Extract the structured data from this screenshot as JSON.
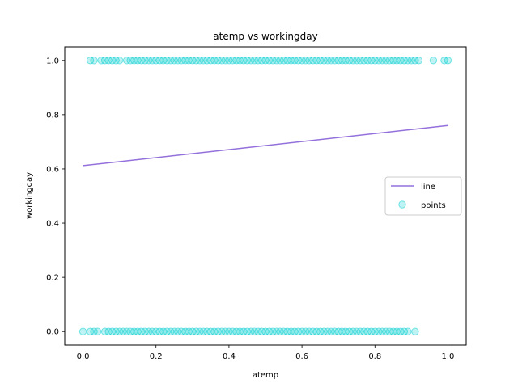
{
  "chart_data": {
    "type": "scatter",
    "title": "atemp vs workingday",
    "xlabel": "atemp",
    "ylabel": "workingday",
    "xlim": [
      -0.05,
      1.05
    ],
    "ylim": [
      -0.05,
      1.05
    ],
    "xticks": [
      0.0,
      0.2,
      0.4,
      0.6,
      0.8,
      1.0
    ],
    "yticks": [
      0.0,
      0.2,
      0.4,
      0.6,
      0.8,
      1.0
    ],
    "xtick_labels": [
      "0.0",
      "0.2",
      "0.4",
      "0.6",
      "0.8",
      "1.0"
    ],
    "ytick_labels": [
      "0.0",
      "0.2",
      "0.4",
      "0.6",
      "0.8",
      "1.0"
    ],
    "grid": false,
    "legend_position": "center-right",
    "series": [
      {
        "name": "line",
        "kind": "line",
        "color": "#9370DB",
        "x": [
          0.0,
          1.0
        ],
        "y": [
          0.612,
          0.76
        ]
      },
      {
        "name": "points",
        "kind": "scatter",
        "color": "#00CED1",
        "x_at_y1": [
          0.02,
          0.03,
          0.05,
          0.06,
          0.07,
          0.08,
          0.09,
          0.1,
          0.12,
          0.13,
          0.14,
          0.15,
          0.16,
          0.17,
          0.18,
          0.19,
          0.2,
          0.21,
          0.22,
          0.23,
          0.24,
          0.25,
          0.26,
          0.27,
          0.28,
          0.29,
          0.3,
          0.31,
          0.32,
          0.33,
          0.34,
          0.35,
          0.36,
          0.37,
          0.38,
          0.39,
          0.4,
          0.41,
          0.42,
          0.43,
          0.44,
          0.45,
          0.46,
          0.47,
          0.48,
          0.49,
          0.5,
          0.51,
          0.52,
          0.53,
          0.54,
          0.55,
          0.56,
          0.57,
          0.58,
          0.59,
          0.6,
          0.61,
          0.62,
          0.63,
          0.64,
          0.65,
          0.66,
          0.67,
          0.68,
          0.69,
          0.7,
          0.71,
          0.72,
          0.73,
          0.74,
          0.75,
          0.76,
          0.77,
          0.78,
          0.79,
          0.8,
          0.81,
          0.82,
          0.83,
          0.84,
          0.85,
          0.86,
          0.87,
          0.88,
          0.89,
          0.9,
          0.91,
          0.92,
          0.96,
          0.99,
          1.0
        ],
        "x_at_y0": [
          0.0,
          0.02,
          0.03,
          0.04,
          0.06,
          0.07,
          0.08,
          0.09,
          0.1,
          0.11,
          0.12,
          0.13,
          0.14,
          0.15,
          0.16,
          0.17,
          0.18,
          0.19,
          0.2,
          0.21,
          0.22,
          0.23,
          0.24,
          0.25,
          0.26,
          0.27,
          0.28,
          0.29,
          0.3,
          0.31,
          0.32,
          0.33,
          0.34,
          0.35,
          0.36,
          0.37,
          0.38,
          0.39,
          0.4,
          0.41,
          0.42,
          0.43,
          0.44,
          0.45,
          0.46,
          0.47,
          0.48,
          0.49,
          0.5,
          0.51,
          0.52,
          0.53,
          0.54,
          0.55,
          0.56,
          0.57,
          0.58,
          0.59,
          0.6,
          0.61,
          0.62,
          0.63,
          0.64,
          0.65,
          0.66,
          0.67,
          0.68,
          0.69,
          0.7,
          0.71,
          0.72,
          0.73,
          0.74,
          0.75,
          0.76,
          0.77,
          0.78,
          0.79,
          0.8,
          0.81,
          0.82,
          0.83,
          0.84,
          0.85,
          0.86,
          0.87,
          0.88,
          0.89,
          0.91
        ]
      }
    ]
  }
}
